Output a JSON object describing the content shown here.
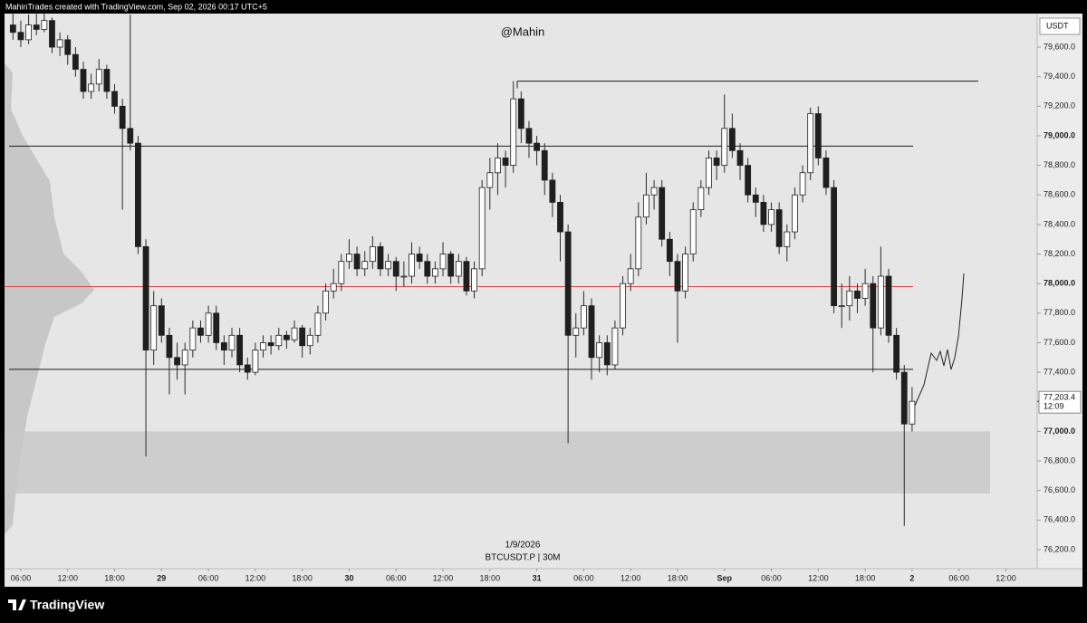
{
  "header": {
    "credit": "MahinTrades created with TradingView.com, Sep 02, 2026 00:17 UTC+5"
  },
  "footer": {
    "brand": "TradingView"
  },
  "chart_data": {
    "type": "candlestick",
    "title": "@Mahin",
    "currency": "USDT",
    "date_label": "1/9/2026",
    "symbol": "BTCUSDT.P | 30M",
    "up_color": "#ffffff",
    "down_color": "#1f1f1f",
    "wick_color": "#2a2a2a",
    "xlim": [
      3.92,
      136
    ],
    "xticks": [
      {
        "value": 6,
        "label": "06:00"
      },
      {
        "value": 12,
        "label": "12:00"
      },
      {
        "value": 18,
        "label": "18:00"
      },
      {
        "value": 24,
        "label": "29"
      },
      {
        "value": 30,
        "label": "06:00"
      },
      {
        "value": 36,
        "label": "12:00"
      },
      {
        "value": 42,
        "label": "18:00"
      },
      {
        "value": 48,
        "label": "30"
      },
      {
        "value": 54,
        "label": "06:00"
      },
      {
        "value": 60,
        "label": "12:00"
      },
      {
        "value": 66,
        "label": "18:00"
      },
      {
        "value": 72,
        "label": "31"
      },
      {
        "value": 78,
        "label": "06:00"
      },
      {
        "value": 84,
        "label": "12:00"
      },
      {
        "value": 90,
        "label": "18:00"
      },
      {
        "value": 96,
        "label": "Sep"
      },
      {
        "value": 102,
        "label": "06:00"
      },
      {
        "value": 108,
        "label": "12:00"
      },
      {
        "value": 114,
        "label": "18:00"
      },
      {
        "value": 120,
        "label": "2"
      },
      {
        "value": 126,
        "label": "06:00"
      },
      {
        "value": 132,
        "label": "12:00"
      }
    ],
    "ylim": [
      76071,
      79827
    ],
    "yticks": [
      {
        "value": 76200,
        "label": "76,200.0"
      },
      {
        "value": 76400,
        "label": "76,400.0"
      },
      {
        "value": 76600,
        "label": "76,600.0"
      },
      {
        "value": 76800,
        "label": "76,800.0"
      },
      {
        "value": 77000,
        "label": "77,000.0"
      },
      {
        "value": 77200,
        "label": "77,200.0"
      },
      {
        "value": 77400,
        "label": "77,400.0"
      },
      {
        "value": 77600,
        "label": "77,600.0"
      },
      {
        "value": 77800,
        "label": "77,800.0"
      },
      {
        "value": 78000,
        "label": "78,000.0"
      },
      {
        "value": 78200,
        "label": "78,200.0"
      },
      {
        "value": 78400,
        "label": "78,400.0"
      },
      {
        "value": 78600,
        "label": "78,600.0"
      },
      {
        "value": 78800,
        "label": "78,800.0"
      },
      {
        "value": 79000,
        "label": "79,000.0"
      },
      {
        "value": 79200,
        "label": "79,200.0"
      },
      {
        "value": 79400,
        "label": "79,400.0"
      },
      {
        "value": 79600,
        "label": "79,600.0"
      }
    ],
    "bold_ticks": [
      77000,
      78000,
      79000
    ],
    "last_price": {
      "value": 77203.4,
      "label": "77,203.4"
    },
    "countdown": "12:09",
    "lines": [
      {
        "price": 79370,
        "color": "#1a1a1a"
      },
      {
        "price": 78930,
        "color": "#1a1a1a"
      },
      {
        "price": 77980,
        "color": "#e0454a"
      },
      {
        "price": 77420,
        "color": "#1a1a1a"
      }
    ],
    "zone": [
      77000,
      76580
    ],
    "zone_color": "#c8c8c8",
    "candles": [
      [
        5,
        79750,
        79830,
        79650,
        79700
      ],
      [
        6,
        79700,
        79780,
        79600,
        79650
      ],
      [
        7,
        79650,
        79820,
        79620,
        79750
      ],
      [
        8,
        79750,
        79850,
        79680,
        79720
      ],
      [
        9,
        79720,
        79840,
        79700,
        79780
      ],
      [
        10,
        79780,
        79800,
        79560,
        79600
      ],
      [
        11,
        79600,
        79700,
        79540,
        79650
      ],
      [
        12,
        79650,
        79680,
        79480,
        79550
      ],
      [
        13,
        79550,
        79600,
        79400,
        79450
      ],
      [
        14,
        79450,
        79500,
        79250,
        79300
      ],
      [
        15,
        79300,
        79420,
        79250,
        79350
      ],
      [
        16,
        79350,
        79520,
        79300,
        79450
      ],
      [
        17,
        79450,
        79480,
        79250,
        79300
      ],
      [
        18,
        79300,
        79350,
        79150,
        79200
      ],
      [
        19,
        79200,
        79250,
        78500,
        79050
      ],
      [
        20,
        79050,
        79820,
        78900,
        78950
      ],
      [
        21,
        78950,
        79000,
        78200,
        78250
      ],
      [
        22,
        78250,
        78300,
        76830,
        77550
      ],
      [
        23,
        77550,
        77950,
        77450,
        77850
      ],
      [
        24,
        77850,
        77900,
        77600,
        77650
      ],
      [
        25,
        77650,
        77700,
        77250,
        77500
      ],
      [
        26,
        77500,
        77600,
        77350,
        77450
      ],
      [
        27,
        77450,
        77600,
        77250,
        77550
      ],
      [
        28,
        77550,
        77750,
        77500,
        77700
      ],
      [
        29,
        77700,
        77750,
        77600,
        77650
      ],
      [
        30,
        77650,
        77850,
        77600,
        77800
      ],
      [
        31,
        77800,
        77850,
        77550,
        77600
      ],
      [
        32,
        77600,
        77650,
        77450,
        77550
      ],
      [
        33,
        77550,
        77700,
        77500,
        77650
      ],
      [
        34,
        77650,
        77700,
        77400,
        77450
      ],
      [
        35,
        77450,
        77500,
        77350,
        77400
      ],
      [
        36,
        77400,
        77600,
        77380,
        77550
      ],
      [
        37,
        77550,
        77650,
        77500,
        77600
      ],
      [
        38,
        77600,
        77650,
        77520,
        77580
      ],
      [
        39,
        77580,
        77700,
        77550,
        77650
      ],
      [
        40,
        77650,
        77680,
        77560,
        77620
      ],
      [
        41,
        77620,
        77750,
        77600,
        77700
      ],
      [
        42,
        77700,
        77720,
        77500,
        77580
      ],
      [
        43,
        77580,
        77700,
        77520,
        77650
      ],
      [
        44,
        77650,
        77850,
        77600,
        77800
      ],
      [
        45,
        77800,
        78000,
        77750,
        77950
      ],
      [
        46,
        77950,
        78100,
        77900,
        78000
      ],
      [
        47,
        78000,
        78200,
        77950,
        78150
      ],
      [
        48,
        78150,
        78300,
        78100,
        78200
      ],
      [
        49,
        78200,
        78250,
        78050,
        78100
      ],
      [
        50,
        78100,
        78220,
        78050,
        78150
      ],
      [
        51,
        78150,
        78320,
        78100,
        78250
      ],
      [
        52,
        78250,
        78280,
        78050,
        78100
      ],
      [
        53,
        78100,
        78200,
        78050,
        78150
      ],
      [
        54,
        78150,
        78180,
        77950,
        78050
      ],
      [
        55,
        78050,
        78150,
        77980,
        78050
      ],
      [
        56,
        78050,
        78280,
        78000,
        78200
      ],
      [
        57,
        78200,
        78250,
        78100,
        78150
      ],
      [
        58,
        78150,
        78200,
        78000,
        78050
      ],
      [
        59,
        78050,
        78150,
        78000,
        78100
      ],
      [
        60,
        78100,
        78280,
        78050,
        78200
      ],
      [
        61,
        78200,
        78220,
        78000,
        78050
      ],
      [
        62,
        78050,
        78200,
        78000,
        78150
      ],
      [
        63,
        78150,
        78180,
        77920,
        77950
      ],
      [
        64,
        77950,
        78150,
        77900,
        78100
      ],
      [
        65,
        78100,
        78700,
        78050,
        78650
      ],
      [
        66,
        78650,
        78850,
        78500,
        78750
      ],
      [
        67,
        78750,
        78950,
        78600,
        78850
      ],
      [
        68,
        78850,
        78900,
        78650,
        78800
      ],
      [
        69,
        78800,
        79370,
        78750,
        79250
      ],
      [
        70,
        79250,
        79300,
        78950,
        79050
      ],
      [
        71,
        79050,
        79100,
        78850,
        78950
      ],
      [
        72,
        78950,
        79000,
        78800,
        78900
      ],
      [
        73,
        78900,
        78950,
        78600,
        78700
      ],
      [
        74,
        78700,
        78750,
        78450,
        78550
      ],
      [
        75,
        78550,
        78600,
        78150,
        78350
      ],
      [
        76,
        78350,
        78400,
        76920,
        77650
      ],
      [
        77,
        77650,
        77800,
        77500,
        77700
      ],
      [
        78,
        77700,
        77950,
        77650,
        77850
      ],
      [
        79,
        77850,
        77900,
        77350,
        77500
      ],
      [
        80,
        77500,
        77650,
        77400,
        77600
      ],
      [
        81,
        77600,
        77650,
        77380,
        77450
      ],
      [
        82,
        77450,
        77750,
        77420,
        77700
      ],
      [
        83,
        77700,
        78050,
        77650,
        78000
      ],
      [
        84,
        78000,
        78200,
        77950,
        78100
      ],
      [
        85,
        78100,
        78550,
        78050,
        78450
      ],
      [
        86,
        78450,
        78750,
        78400,
        78600
      ],
      [
        87,
        78600,
        78700,
        78500,
        78650
      ],
      [
        88,
        78650,
        78700,
        78250,
        78300
      ],
      [
        89,
        78300,
        78350,
        78050,
        78150
      ],
      [
        90,
        78150,
        78200,
        77600,
        77950
      ],
      [
        91,
        77950,
        78250,
        77900,
        78200
      ],
      [
        92,
        78200,
        78550,
        78150,
        78500
      ],
      [
        93,
        78500,
        78700,
        78450,
        78650
      ],
      [
        94,
        78650,
        78900,
        78600,
        78850
      ],
      [
        95,
        78850,
        78900,
        78700,
        78800
      ],
      [
        96,
        78800,
        79280,
        78750,
        79050
      ],
      [
        97,
        79050,
        79150,
        78850,
        78900
      ],
      [
        98,
        78900,
        78950,
        78700,
        78800
      ],
      [
        99,
        78800,
        78850,
        78550,
        78600
      ],
      [
        100,
        78600,
        78650,
        78450,
        78550
      ],
      [
        101,
        78550,
        78600,
        78350,
        78400
      ],
      [
        102,
        78400,
        78550,
        78350,
        78500
      ],
      [
        103,
        78500,
        78550,
        78200,
        78250
      ],
      [
        104,
        78250,
        78400,
        78150,
        78350
      ],
      [
        105,
        78350,
        78650,
        78300,
        78600
      ],
      [
        106,
        78600,
        78800,
        78550,
        78750
      ],
      [
        107,
        78750,
        79190,
        78700,
        79150
      ],
      [
        108,
        79150,
        79200,
        78800,
        78850
      ],
      [
        109,
        78850,
        78900,
        78600,
        78650
      ],
      [
        110,
        78650,
        78700,
        77800,
        77850
      ],
      [
        111,
        77850,
        78000,
        77700,
        77850
      ],
      [
        112,
        77850,
        78050,
        77750,
        77950
      ],
      [
        113,
        77950,
        78000,
        77800,
        77900
      ],
      [
        114,
        77900,
        78100,
        77850,
        78000
      ],
      [
        115,
        78000,
        78050,
        77400,
        77700
      ],
      [
        116,
        77700,
        78250,
        77650,
        78050
      ],
      [
        117,
        78050,
        78100,
        77600,
        77650
      ],
      [
        118,
        77650,
        77700,
        77350,
        77400
      ],
      [
        119,
        77400,
        77450,
        76360,
        77050
      ],
      [
        120,
        77050,
        77300,
        77000,
        77203.4
      ]
    ]
  }
}
